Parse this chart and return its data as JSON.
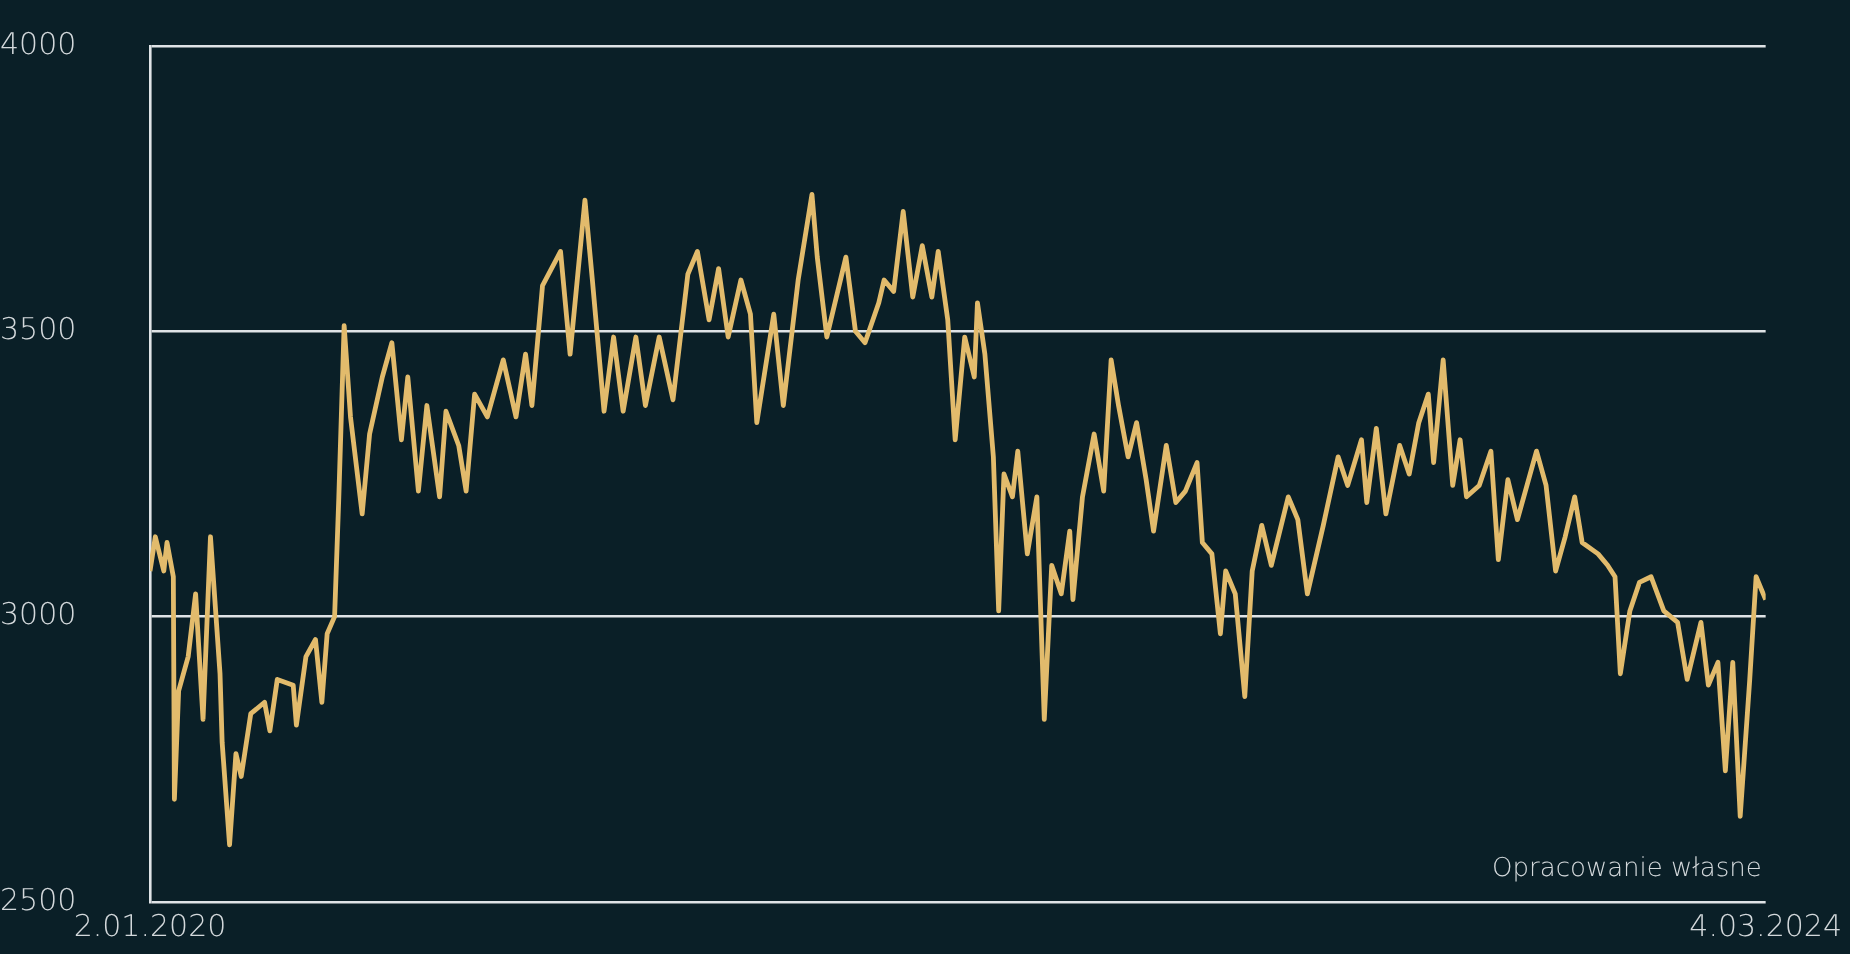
{
  "chart_data": {
    "type": "line",
    "x": [
      "2020-01-02",
      "2020-01-07",
      "2020-01-15",
      "2020-01-18",
      "2020-01-24",
      "2020-01-25",
      "2020-01-29",
      "2020-02-07",
      "2020-02-14",
      "2020-02-21",
      "2020-02-28",
      "2020-03-08",
      "2020-03-10",
      "2020-03-17",
      "2020-03-23",
      "2020-03-28",
      "2020-04-06",
      "2020-04-19",
      "2020-04-24",
      "2020-05-01",
      "2020-05-16",
      "2020-05-19",
      "2020-05-28",
      "2020-06-06",
      "2020-06-12",
      "2020-06-17",
      "2020-06-24",
      "2020-06-28",
      "2020-07-03",
      "2020-07-09",
      "2020-07-20",
      "2020-07-27",
      "2020-08-08",
      "2020-08-17",
      "2020-08-26",
      "2020-09-01",
      "2020-09-11",
      "2020-09-19",
      "2020-10-01",
      "2020-10-07",
      "2020-10-19",
      "2020-10-26",
      "2020-11-03",
      "2020-11-15",
      "2020-11-30",
      "2020-12-12",
      "2020-12-21",
      "2020-12-27",
      "2021-01-06",
      "2021-01-23",
      "2021-02-01",
      "2021-02-15",
      "2021-02-22",
      "2021-03-05",
      "2021-03-14",
      "2021-03-23",
      "2021-04-04",
      "2021-04-13",
      "2021-04-26",
      "2021-05-09",
      "2021-05-23",
      "2021-06-01",
      "2021-06-12",
      "2021-06-21",
      "2021-06-30",
      "2021-07-12",
      "2021-07-21",
      "2021-07-27",
      "2021-08-12",
      "2021-08-21",
      "2021-09-04",
      "2021-09-17",
      "2021-09-22",
      "2021-10-01",
      "2021-10-19",
      "2021-10-28",
      "2021-11-06",
      "2021-11-19",
      "2021-11-24",
      "2021-12-03",
      "2021-12-12",
      "2021-12-21",
      "2021-12-30",
      "2022-01-08",
      "2022-01-14",
      "2022-01-23",
      "2022-01-30",
      "2022-02-08",
      "2022-02-17",
      "2022-02-20",
      "2022-02-27",
      "2022-03-07",
      "2022-03-12",
      "2022-03-17",
      "2022-03-25",
      "2022-03-30",
      "2022-04-08",
      "2022-04-17",
      "2022-04-24",
      "2022-05-01",
      "2022-05-10",
      "2022-05-18",
      "2022-05-21",
      "2022-05-30",
      "2022-06-10",
      "2022-06-19",
      "2022-06-26",
      "2022-07-03",
      "2022-07-12",
      "2022-07-20",
      "2022-07-29",
      "2022-08-05",
      "2022-08-17",
      "2022-08-26",
      "2022-09-04",
      "2022-09-15",
      "2022-09-20",
      "2022-09-29",
      "2022-10-07",
      "2022-10-12",
      "2022-10-21",
      "2022-10-30",
      "2022-11-06",
      "2022-11-15",
      "2022-11-24",
      "2022-12-10",
      "2022-12-19",
      "2022-12-28",
      "2023-01-12",
      "2023-01-26",
      "2023-02-04",
      "2023-02-17",
      "2023-02-22",
      "2023-03-03",
      "2023-03-12",
      "2023-03-25",
      "2023-04-03",
      "2023-04-12",
      "2023-04-21",
      "2023-04-26",
      "2023-05-05",
      "2023-05-14",
      "2023-05-21",
      "2023-05-27",
      "2023-06-08",
      "2023-06-19",
      "2023-06-26",
      "2023-07-05",
      "2023-07-14",
      "2023-07-23",
      "2023-08-01",
      "2023-08-10",
      "2023-08-19",
      "2023-08-28",
      "2023-09-06",
      "2023-09-13",
      "2023-09-28",
      "2023-10-07",
      "2023-10-14",
      "2023-10-19",
      "2023-10-28",
      "2023-11-06",
      "2023-11-17",
      "2023-11-29",
      "2023-12-12",
      "2023-12-21",
      "2024-01-03",
      "2024-01-10",
      "2024-01-19",
      "2024-01-26",
      "2024-02-02",
      "2024-02-09",
      "2024-02-18",
      "2024-02-24",
      "2024-03-04"
    ],
    "values": [
      3080,
      3140,
      3080,
      3130,
      3070,
      2680,
      2870,
      2930,
      3040,
      2820,
      3140,
      2900,
      2780,
      2600,
      2760,
      2720,
      2830,
      2850,
      2800,
      2890,
      2880,
      2810,
      2930,
      2960,
      2850,
      2970,
      3000,
      3210,
      3510,
      3350,
      3180,
      3320,
      3420,
      3480,
      3310,
      3420,
      3220,
      3370,
      3210,
      3360,
      3300,
      3220,
      3390,
      3350,
      3450,
      3350,
      3460,
      3370,
      3580,
      3640,
      3460,
      3730,
      3590,
      3360,
      3490,
      3360,
      3490,
      3370,
      3490,
      3380,
      3600,
      3640,
      3520,
      3610,
      3490,
      3590,
      3530,
      3340,
      3530,
      3370,
      3590,
      3740,
      3630,
      3490,
      3630,
      3500,
      3480,
      3550,
      3590,
      3570,
      3710,
      3560,
      3650,
      3560,
      3640,
      3520,
      3310,
      3490,
      3420,
      3550,
      3460,
      3280,
      3010,
      3250,
      3210,
      3290,
      3110,
      3210,
      2820,
      3090,
      3040,
      3150,
      3030,
      3210,
      3320,
      3220,
      3450,
      3370,
      3280,
      3340,
      3240,
      3150,
      3300,
      3200,
      3220,
      3270,
      3130,
      3110,
      2970,
      3080,
      3040,
      2860,
      3080,
      3160,
      3090,
      3210,
      3170,
      3040,
      3160,
      3280,
      3230,
      3310,
      3200,
      3330,
      3180,
      3300,
      3250,
      3340,
      3390,
      3270,
      3450,
      3230,
      3310,
      3210,
      3230,
      3290,
      3100,
      3240,
      3170,
      3230,
      3290,
      3230,
      3080,
      3140,
      3210,
      3130,
      3110,
      3090,
      3070,
      2900,
      3010,
      3060,
      3070,
      3010,
      2990,
      2890,
      2990,
      2880,
      2920,
      2730,
      2920,
      2650,
      2890,
      3070,
      3030
    ],
    "color": "#e2bb6c",
    "marker": "none",
    "line_style": "solid",
    "xlim": [
      "2020-01-02",
      "2024-03-04"
    ],
    "xticks": [
      {
        "value": "2020-01-02",
        "label": "2.01.2020"
      },
      {
        "value": "2024-03-04",
        "label": "4.03.2024"
      }
    ],
    "ylim": [
      2500,
      4000
    ],
    "yticks": [
      2500,
      3000,
      3500,
      4000
    ],
    "grid": "y",
    "annotations": [
      "Opracowanie własne"
    ]
  }
}
